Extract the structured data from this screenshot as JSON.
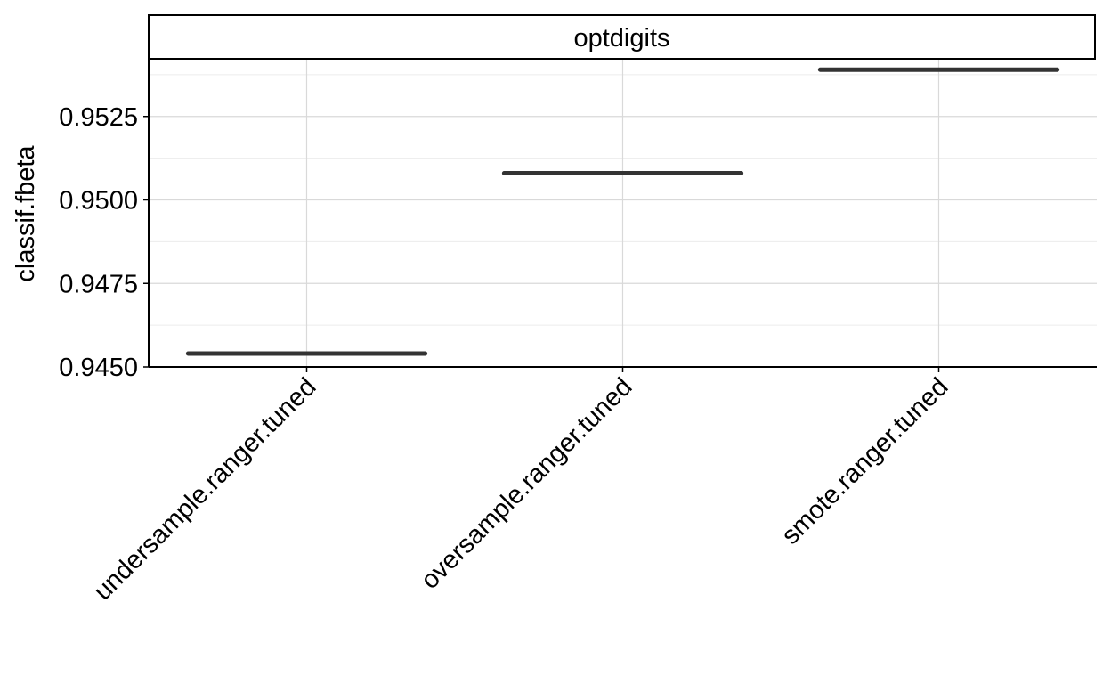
{
  "chart_data": {
    "type": "boxplot",
    "facet": "optdigits",
    "xlabel": "",
    "ylabel": "classif.fbeta",
    "ylim": [
      0.945,
      0.9542
    ],
    "yticks": [
      "0.9450",
      "0.9475",
      "0.9500",
      "0.9525"
    ],
    "categories": [
      "undersample.ranger.tuned",
      "oversample.ranger.tuned",
      "smote.ranger.tuned"
    ],
    "values": [
      0.9454,
      0.9508,
      0.9539
    ],
    "grid": true,
    "colors": {
      "median": "#333333",
      "grid": "#d9d9d9",
      "axis": "#000000"
    }
  }
}
